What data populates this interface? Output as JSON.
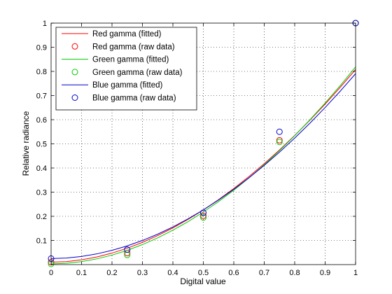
{
  "chart_data": {
    "type": "line",
    "title": "",
    "xlabel": "Digital value",
    "ylabel": "Relative radiance",
    "xlim": [
      0,
      1
    ],
    "ylim": [
      0,
      1
    ],
    "xticks": [
      0,
      0.1,
      0.2,
      0.3,
      0.4,
      0.5,
      0.6,
      0.7,
      0.8,
      0.9,
      1
    ],
    "yticks": [
      0.1,
      0.2,
      0.3,
      0.4,
      0.5,
      0.6,
      0.7,
      0.8,
      0.9,
      1
    ],
    "xtick_labels": [
      "0",
      "0.1",
      "0.2",
      "0.3",
      "0.4",
      "0.5",
      "0.6",
      "0.7",
      "0.8",
      "0.9",
      "1"
    ],
    "ytick_labels": [
      "0.1",
      "0.2",
      "0.3",
      "0.4",
      "0.5",
      "0.6",
      "0.7",
      "0.8",
      "0.9",
      "1"
    ],
    "grid": true,
    "legend_position": "top-left",
    "series": [
      {
        "name": "Red gamma (fitted)",
        "kind": "line",
        "color": "#ff0000",
        "x": [
          0,
          0.05,
          0.1,
          0.15,
          0.2,
          0.25,
          0.3,
          0.35,
          0.4,
          0.45,
          0.5,
          0.55,
          0.6,
          0.65,
          0.7,
          0.75,
          0.8,
          0.85,
          0.9,
          0.95,
          1
        ],
        "y": [
          0.01,
          0.0125,
          0.0198,
          0.0316,
          0.0477,
          0.0679,
          0.0921,
          0.1201,
          0.1518,
          0.1873,
          0.2263,
          0.269,
          0.3152,
          0.3649,
          0.4181,
          0.4747,
          0.5347,
          0.5981,
          0.6648,
          0.7348,
          0.808
        ]
      },
      {
        "name": "Red gamma (raw data)",
        "kind": "marker",
        "color": "#ff0000",
        "x": [
          0,
          0.25,
          0.5,
          0.75,
          1
        ],
        "y": [
          0.01,
          0.048,
          0.202,
          0.515,
          1
        ]
      },
      {
        "name": "Green gamma (fitted)",
        "kind": "line",
        "color": "#00cc00",
        "x": [
          0,
          0.05,
          0.1,
          0.15,
          0.2,
          0.25,
          0.3,
          0.35,
          0.4,
          0.45,
          0.5,
          0.55,
          0.6,
          0.65,
          0.7,
          0.75,
          0.8,
          0.85,
          0.9,
          0.95,
          1
        ],
        "y": [
          0.003,
          0.0054,
          0.0123,
          0.0237,
          0.0393,
          0.0591,
          0.0829,
          0.1108,
          0.1425,
          0.1782,
          0.2177,
          0.261,
          0.3081,
          0.359,
          0.4136,
          0.4719,
          0.5339,
          0.5996,
          0.669,
          0.742,
          0.8187
        ]
      },
      {
        "name": "Green gamma (raw data)",
        "kind": "marker",
        "color": "#00cc00",
        "x": [
          0,
          0.25,
          0.5,
          0.75,
          1
        ],
        "y": [
          0.003,
          0.04,
          0.195,
          0.508,
          1
        ]
      },
      {
        "name": "Blue gamma (fitted)",
        "kind": "line",
        "color": "#0000cc",
        "x": [
          0,
          0.05,
          0.1,
          0.15,
          0.2,
          0.25,
          0.3,
          0.35,
          0.4,
          0.45,
          0.5,
          0.55,
          0.6,
          0.65,
          0.7,
          0.75,
          0.8,
          0.85,
          0.9,
          0.95,
          1
        ],
        "y": [
          0.025,
          0.0272,
          0.0337,
          0.0444,
          0.059,
          0.0775,
          0.0999,
          0.1261,
          0.156,
          0.1896,
          0.2268,
          0.2675,
          0.3118,
          0.3596,
          0.4109,
          0.4657,
          0.5239,
          0.5855,
          0.6505,
          0.7189,
          0.7906
        ]
      },
      {
        "name": "Blue gamma (raw data)",
        "kind": "marker",
        "color": "#0000cc",
        "x": [
          0,
          0.25,
          0.5,
          0.75,
          1
        ],
        "y": [
          0.025,
          0.062,
          0.215,
          0.55,
          1
        ]
      }
    ]
  }
}
